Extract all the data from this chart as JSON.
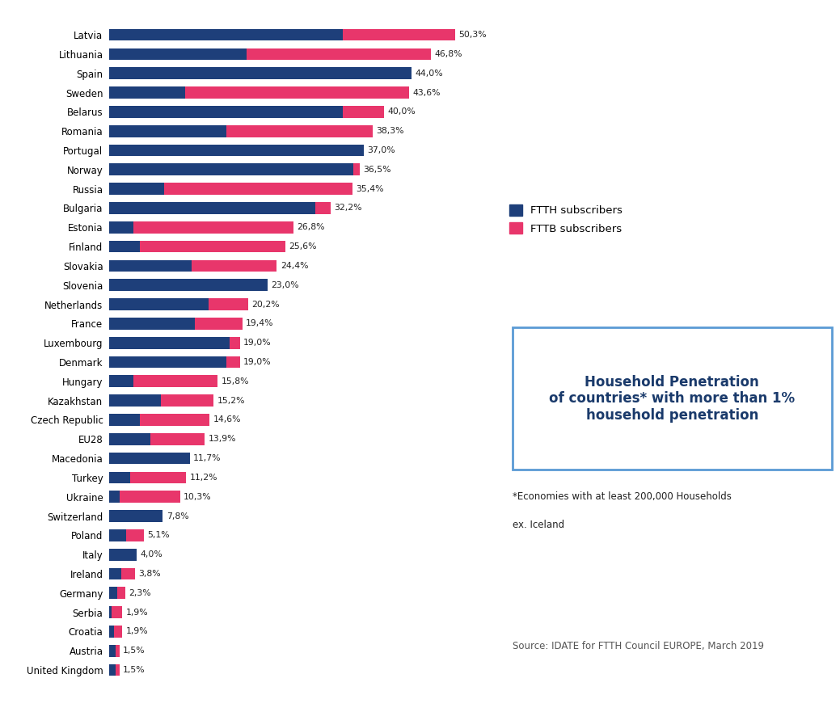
{
  "countries": [
    "Latvia",
    "Lithuania",
    "Spain",
    "Sweden",
    "Belarus",
    "Romania",
    "Portugal",
    "Norway",
    "Russia",
    "Bulgaria",
    "Estonia",
    "Finland",
    "Slovakia",
    "Slovenia",
    "Netherlands",
    "France",
    "Luxembourg",
    "Denmark",
    "Hungary",
    "Kazakhstan",
    "Czech Republic",
    "EU28",
    "Macedonia",
    "Turkey",
    "Ukraine",
    "Switzerland",
    "Poland",
    "Italy",
    "Ireland",
    "Germany",
    "Serbia",
    "Croatia",
    "Austria",
    "United Kingdom"
  ],
  "totals": [
    50.3,
    46.8,
    44.0,
    43.6,
    40.0,
    38.3,
    37.0,
    36.5,
    35.4,
    32.2,
    26.8,
    25.6,
    24.4,
    23.0,
    20.2,
    19.4,
    19.0,
    19.0,
    15.8,
    15.2,
    14.6,
    13.9,
    11.7,
    11.2,
    10.3,
    7.8,
    5.1,
    4.0,
    3.8,
    2.3,
    1.9,
    1.9,
    1.5,
    1.5
  ],
  "ftth": [
    34.0,
    20.0,
    44.0,
    11.0,
    34.0,
    17.0,
    37.0,
    35.5,
    8.0,
    30.0,
    3.5,
    4.5,
    12.0,
    23.0,
    14.5,
    12.5,
    17.5,
    17.0,
    3.5,
    7.5,
    4.5,
    6.0,
    11.7,
    3.0,
    1.5,
    7.8,
    2.5,
    4.0,
    1.8,
    1.2,
    0.3,
    0.7,
    0.9,
    0.9
  ],
  "color_ftth": "#1e3f7a",
  "color_fttb": "#e8366b",
  "bar_height": 0.62,
  "xlim": [
    0,
    55
  ],
  "legend_ftth": "FTTH subscribers",
  "legend_fttb": "FTTB subscribers",
  "box_title": "Household Penetration\nof countries* with more than 1%\nhousehold penetration",
  "box_note1": "*Economies with at least 200,000 Households",
  "box_note2": "ex. Iceland",
  "source": "Source: IDATE for FTTH Council EUROPE, March 2019",
  "total_labels": [
    "50,3%",
    "46,8%",
    "44,0%",
    "43,6%",
    "40,0%",
    "38,3%",
    "37,0%",
    "36,5%",
    "35,4%",
    "32,2%",
    "26,8%",
    "25,6%",
    "24,4%",
    "23,0%",
    "20,2%",
    "19,4%",
    "19,0%",
    "19,0%",
    "15,8%",
    "15,2%",
    "14,6%",
    "13,9%",
    "11,7%",
    "11,2%",
    "10,3%",
    "7,8%",
    "5,1%",
    "4,0%",
    "3,8%",
    "2,3%",
    "1,9%",
    "1,9%",
    "1,5%",
    "1,5%"
  ]
}
